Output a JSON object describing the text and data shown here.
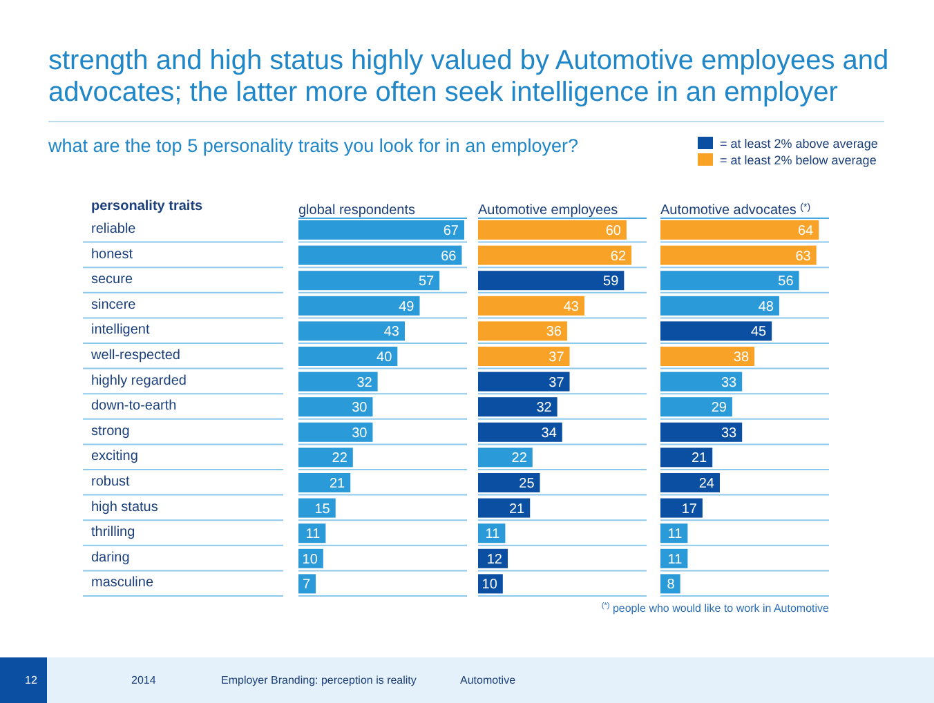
{
  "chart_data": [
    {
      "type": "bar",
      "orientation": "horizontal",
      "title": "strength and high status highly valued by Automotive employees and advocates; the latter more often seek intelligence in an employer",
      "subtitle": "what are the top 5 personality traits you look for in an employer?",
      "ylabel": "personality traits",
      "xlabel": "global respondents",
      "categories": [
        "reliable",
        "honest",
        "secure",
        "sincere",
        "intelligent",
        "well-respected",
        "highly regarded",
        "down-to-earth",
        "strong",
        "exciting",
        "robust",
        "high status",
        "thrilling",
        "daring",
        "masculine"
      ],
      "data_labels": true,
      "series": [
        {
          "color": "#2b9ad8",
          "values": [
            67,
            66,
            57,
            49,
            43,
            40,
            32,
            30,
            30,
            22,
            21,
            15,
            11,
            10,
            7
          ]
        }
      ],
      "annotations": [
        "$^{(*)}$ people who would like to work in Automotive",
        "12",
        "2014",
        "Employer Branding: perception is reality",
        "Automotive"
      ]
    },
    {
      "type": "bar",
      "orientation": "horizontal",
      "xlabel": "Automotive employees",
      "categories": [
        null,
        null,
        null,
        null,
        null,
        null,
        null,
        null,
        null,
        null,
        null,
        null,
        null,
        null,
        null
      ],
      "data_labels": true,
      "series": [
        {
          "color": "#2b9ad8",
          "values": [
            null,
            null,
            null,
            null,
            null,
            null,
            null,
            null,
            null,
            22,
            null,
            null,
            11,
            null,
            null
          ]
        },
        {
          "color": "#0b4fa3",
          "values": [
            null,
            null,
            59,
            null,
            null,
            null,
            37,
            32,
            34,
            null,
            25,
            21,
            null,
            12,
            10
          ]
        },
        {
          "color": "#f9a228",
          "values": [
            60,
            62,
            null,
            43,
            36,
            37,
            null,
            null,
            null,
            null,
            null,
            null,
            null,
            null,
            null
          ]
        }
      ]
    },
    {
      "type": "bar",
      "orientation": "horizontal",
      "xlabel": "Automotive advocates $^{(*)}$",
      "legend": "top right",
      "categories": [
        null,
        null,
        null,
        null,
        null,
        null,
        null,
        null,
        null,
        null,
        null,
        null,
        null,
        null,
        null
      ],
      "data_labels": true,
      "series": [
        {
          "color": "#2b9ad8",
          "values": [
            null,
            null,
            56,
            48,
            null,
            null,
            33,
            29,
            null,
            null,
            null,
            null,
            11,
            11,
            8
          ]
        },
        {
          "name": "= at least 2% above average",
          "color": "#0b4fa3",
          "values": [
            null,
            null,
            null,
            null,
            45,
            null,
            null,
            null,
            33,
            21,
            24,
            17,
            null,
            null,
            null
          ]
        },
        {
          "name": "= at least 2% below average",
          "color": "#f9a228",
          "values": [
            64,
            63,
            null,
            null,
            null,
            38,
            null,
            null,
            null,
            null,
            null,
            null,
            null,
            null,
            null
          ]
        }
      ]
    }
  ]
}
